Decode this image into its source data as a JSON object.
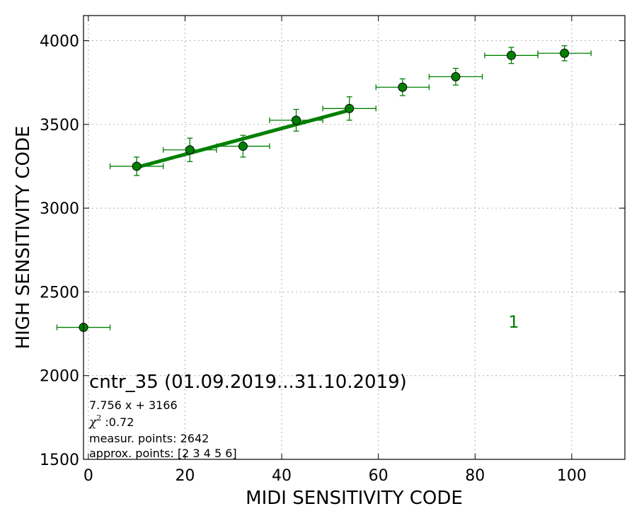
{
  "chart_data": {
    "type": "scatter",
    "xlabel": "MIDI SENSITIVITY CODE",
    "ylabel": "HIGH SENSITIVITY CODE",
    "xlim": [
      -1,
      111
    ],
    "ylim": [
      1500,
      4150
    ],
    "xticks": [
      0,
      20,
      40,
      60,
      80,
      100
    ],
    "yticks": [
      1500,
      2000,
      2500,
      3000,
      3500,
      4000
    ],
    "grid": true,
    "color": "#008000",
    "points": [
      {
        "x": -1,
        "y": 2288,
        "xerr": 5.5,
        "yerr": 0
      },
      {
        "x": 10,
        "y": 3250,
        "xerr": 5.5,
        "yerr": 55
      },
      {
        "x": 21,
        "y": 3348,
        "xerr": 5.5,
        "yerr": 70
      },
      {
        "x": 32,
        "y": 3370,
        "xerr": 5.5,
        "yerr": 65
      },
      {
        "x": 43,
        "y": 3525,
        "xerr": 5.5,
        "yerr": 65
      },
      {
        "x": 54,
        "y": 3595,
        "xerr": 5.5,
        "yerr": 70
      },
      {
        "x": 65,
        "y": 3722,
        "xerr": 5.5,
        "yerr": 50
      },
      {
        "x": 76,
        "y": 3785,
        "xerr": 5.5,
        "yerr": 50
      },
      {
        "x": 87.5,
        "y": 3912,
        "xerr": 5.5,
        "yerr": 48
      },
      {
        "x": 98.5,
        "y": 3925,
        "xerr": 5.5,
        "yerr": 45
      }
    ],
    "fit": {
      "slope": 7.756,
      "intercept": 3166,
      "x_start": 10,
      "x_end": 54
    },
    "series_label": "1",
    "series_label_pos": {
      "x": 88,
      "y": 2320
    },
    "annotations": {
      "title": "cntr_35 (01.09.2019...31.10.2019)",
      "equation": "7.756 x + 3166",
      "chi_symbol": "χ",
      "chi_sup": "2",
      "chi_value": " :0.72",
      "measur_points": "measur. points: 2642",
      "approx_points": "approx. points: [2 3 4 5 6]"
    }
  }
}
